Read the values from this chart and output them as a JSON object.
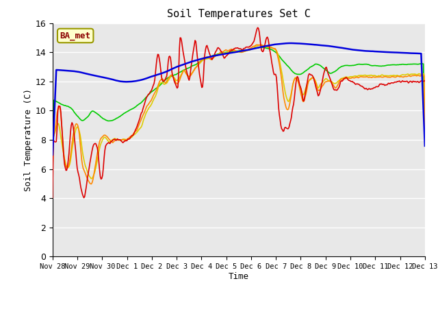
{
  "title": "Soil Temperatures Set C",
  "xlabel": "Time",
  "ylabel": "Soil Temperature (C)",
  "ylim": [
    0,
    16
  ],
  "yticks": [
    0,
    2,
    4,
    6,
    8,
    10,
    12,
    14,
    16
  ],
  "bg_color": "#e8e8e8",
  "fig_color": "#ffffff",
  "annotation_text": "BA_met",
  "annotation_color": "#8b0000",
  "annotation_bg": "#ffffcc",
  "annotation_border": "#999900",
  "x_labels": [
    "Nov 28",
    "Nov 29",
    "Nov 30",
    "Dec 1",
    "Dec 2",
    "Dec 3",
    "Dec 4",
    "Dec 5",
    "Dec 6",
    "Dec 7",
    "Dec 8",
    "Dec 9",
    "Dec 10",
    "Dec 11",
    "Dec 12",
    "Dec 13"
  ],
  "series": {
    "-2cm": {
      "color": "#dd0000",
      "lw": 1.2
    },
    "-4cm": {
      "color": "#ff8800",
      "lw": 1.2
    },
    "-8cm": {
      "color": "#ddcc00",
      "lw": 1.2
    },
    "-16cm": {
      "color": "#00cc00",
      "lw": 1.2
    },
    "-32cm": {
      "color": "#0000dd",
      "lw": 1.8
    }
  }
}
